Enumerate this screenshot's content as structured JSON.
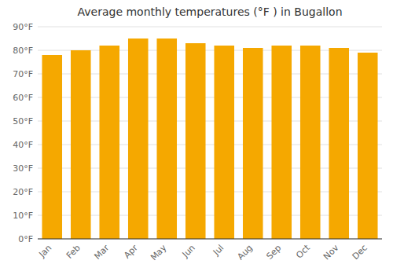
{
  "chart_data": {
    "type": "bar",
    "title": "Average monthly temperatures (°F ) in Bugallon",
    "categories": [
      "Jan",
      "Feb",
      "Mar",
      "Apr",
      "May",
      "Jun",
      "Jul",
      "Aug",
      "Sep",
      "Oct",
      "Nov",
      "Dec"
    ],
    "values": [
      78,
      80,
      82,
      85,
      85,
      83,
      82,
      81,
      82,
      82,
      81,
      79
    ],
    "color": "#F5A800",
    "ylim": [
      0,
      90
    ],
    "yticks": [
      {
        "value": 0,
        "label": "0°F"
      },
      {
        "value": 10,
        "label": "10°F"
      },
      {
        "value": 20,
        "label": "20°F"
      },
      {
        "value": 30,
        "label": "30°F"
      },
      {
        "value": 40,
        "label": "40°F"
      },
      {
        "value": 50,
        "label": "50°F"
      },
      {
        "value": 60,
        "label": "60°F"
      },
      {
        "value": 70,
        "label": "70°F"
      },
      {
        "value": 80,
        "label": "80°F"
      },
      {
        "value": 90,
        "label": "90°F"
      }
    ],
    "grid": true
  }
}
